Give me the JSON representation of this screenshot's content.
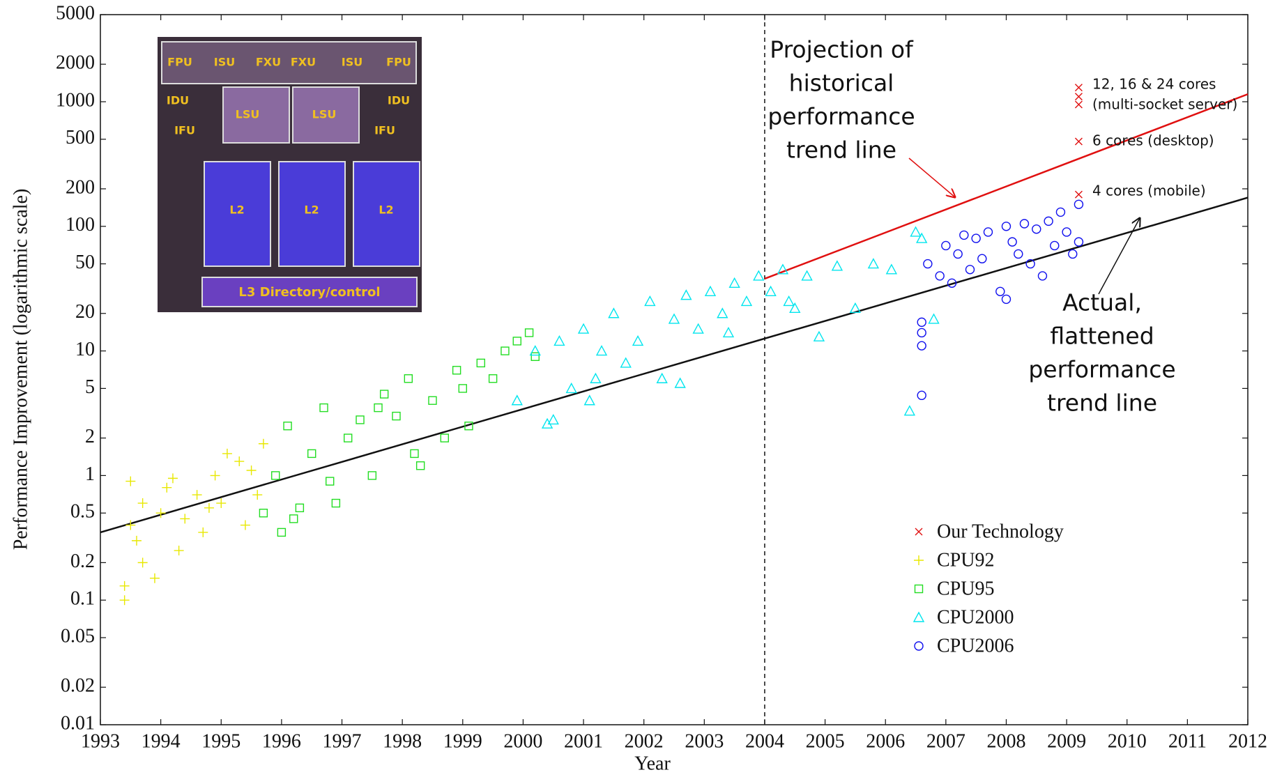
{
  "chart_data": {
    "type": "scatter",
    "x_label": "Year",
    "y_label": "Performance Improvement (logarithmic scale)",
    "log_y": true,
    "xlim": [
      1993,
      2012
    ],
    "ylim": [
      0.01,
      5000
    ],
    "xticks": [
      1993,
      1994,
      1995,
      1996,
      1997,
      1998,
      1999,
      2000,
      2001,
      2002,
      2003,
      2004,
      2005,
      2006,
      2007,
      2008,
      2009,
      2010,
      2011,
      2012
    ],
    "yticks": [
      0.01,
      0.02,
      0.05,
      0.1,
      0.2,
      0.5,
      1,
      2,
      5,
      10,
      20,
      50,
      100,
      200,
      500,
      1000,
      2000,
      5000
    ],
    "vline": 2004,
    "legend": "lower right",
    "series": [
      {
        "name": "Our Technology",
        "color": "#e01010",
        "marker": "x",
        "x": [
          2009.2,
          2009.2,
          2009.2,
          2009.2,
          2009.2
        ],
        "values": [
          1300,
          1100,
          950,
          480,
          180
        ]
      },
      {
        "name": "CPU92",
        "color": "#e8e800",
        "marker": "plus",
        "x": [
          1993.4,
          1993.4,
          1993.5,
          1993.5,
          1993.7,
          1993.7,
          1993.9,
          1994.0,
          1994.1,
          1994.3,
          1994.4,
          1994.6,
          1994.7,
          1994.9,
          1995.0,
          1995.1,
          1995.3,
          1995.4,
          1995.6,
          1995.7,
          1993.6,
          1994.2,
          1994.8,
          1995.5
        ],
        "values": [
          0.1,
          0.13,
          0.4,
          0.9,
          0.2,
          0.6,
          0.15,
          0.5,
          0.8,
          0.25,
          0.45,
          0.7,
          0.35,
          1,
          0.6,
          1.5,
          1.3,
          0.4,
          0.7,
          1.8,
          0.3,
          0.95,
          0.55,
          1.1
        ]
      },
      {
        "name": "CPU95",
        "color": "#22dd22",
        "marker": "square",
        "x": [
          1995.7,
          1995.9,
          1996.0,
          1996.1,
          1996.3,
          1996.5,
          1996.7,
          1996.9,
          1997.1,
          1997.3,
          1997.5,
          1997.7,
          1997.9,
          1998.1,
          1998.3,
          1998.5,
          1998.7,
          1998.9,
          1999.1,
          1999.3,
          1999.5,
          1999.7,
          1999.9,
          2000.1,
          1996.2,
          1996.8,
          1997.6,
          1998.2,
          1999.0,
          2000.2
        ],
        "values": [
          0.5,
          1,
          0.35,
          2.5,
          0.55,
          1.5,
          3.5,
          0.6,
          2,
          2.8,
          1,
          4.5,
          3,
          6,
          1.2,
          4,
          2,
          7,
          2.5,
          8,
          6,
          10,
          12,
          14,
          0.45,
          0.9,
          3.5,
          1.5,
          5,
          9
        ]
      },
      {
        "name": "CPU2000",
        "color": "#00e5ee",
        "marker": "triangle",
        "x": [
          1999.9,
          2000.2,
          2000.4,
          2000.6,
          2000.8,
          2001.0,
          2001.1,
          2001.3,
          2001.5,
          2001.7,
          2001.9,
          2002.1,
          2002.3,
          2002.5,
          2002.7,
          2002.9,
          2003.1,
          2003.3,
          2003.5,
          2003.7,
          2003.9,
          2004.1,
          2004.3,
          2004.5,
          2004.7,
          2004.9,
          2005.2,
          2005.5,
          2005.8,
          2006.1,
          2006.4,
          2006.6,
          2006.8,
          2000.5,
          2001.2,
          2002.6,
          2003.4,
          2004.4,
          2006.5
        ],
        "values": [
          4,
          10,
          2.6,
          12,
          5,
          15,
          4,
          10,
          20,
          8,
          12,
          25,
          6,
          18,
          28,
          15,
          30,
          20,
          35,
          25,
          40,
          30,
          45,
          22,
          40,
          13,
          48,
          22,
          50,
          45,
          3.3,
          80,
          18,
          2.8,
          6,
          5.5,
          14,
          25,
          90
        ]
      },
      {
        "name": "CPU2006",
        "color": "#1010ee",
        "marker": "circle",
        "x": [
          2006.6,
          2006.6,
          2006.6,
          2006.7,
          2006.9,
          2007.0,
          2007.1,
          2007.2,
          2007.4,
          2007.5,
          2007.6,
          2007.7,
          2007.9,
          2008.0,
          2008.0,
          2008.1,
          2008.2,
          2008.3,
          2008.4,
          2008.5,
          2008.6,
          2008.7,
          2008.8,
          2008.9,
          2009.0,
          2009.1,
          2009.2,
          2009.2,
          2006.6,
          2007.3
        ],
        "values": [
          4.4,
          11,
          17,
          50,
          40,
          70,
          35,
          60,
          45,
          80,
          55,
          90,
          30,
          100,
          26,
          75,
          60,
          105,
          50,
          95,
          40,
          110,
          70,
          130,
          90,
          60,
          150,
          75,
          14,
          85
        ]
      }
    ],
    "trend_lines": [
      {
        "color": "#111111",
        "x": [
          1993,
          2012
        ],
        "values": [
          0.35,
          170
        ]
      },
      {
        "color": "#e01010",
        "x": [
          2004,
          2012
        ],
        "values": [
          38,
          1150
        ]
      }
    ],
    "annotations": {
      "projection": [
        "Projection of",
        "historical",
        "performance",
        "trend line"
      ],
      "actual": [
        "Actual,",
        "flattened",
        "performance",
        "trend line"
      ],
      "cores": [
        "12, 16 & 24 cores",
        "(multi-socket server)",
        "6 cores (desktop)",
        "4 cores (mobile)"
      ]
    },
    "inset_labels": [
      "FPU",
      "ISU",
      "FXU",
      "FXU",
      "ISU",
      "FPU",
      "IDU",
      "LSU",
      "LSU",
      "IDU",
      "IFU",
      "IFU",
      "L2",
      "L2",
      "L2",
      "L3 Directory/control"
    ]
  }
}
